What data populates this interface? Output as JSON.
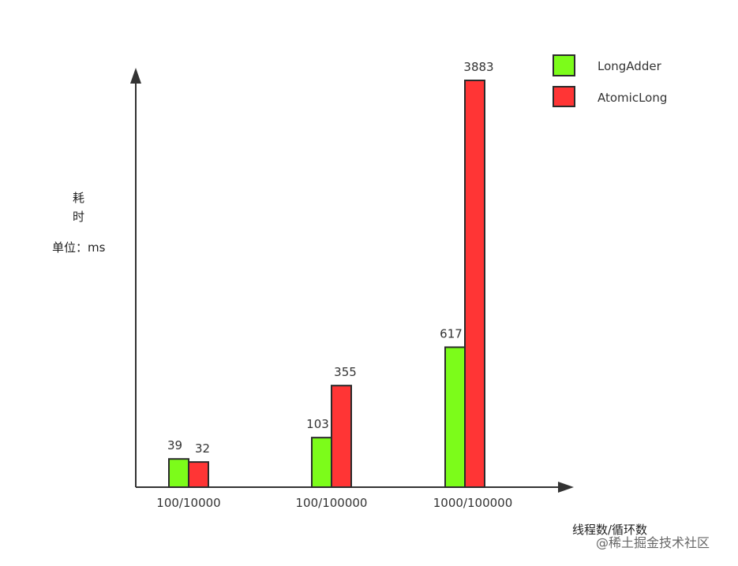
{
  "chart_data": {
    "type": "bar",
    "categories": [
      "100/10000",
      "100/100000",
      "1000/100000"
    ],
    "series": [
      {
        "name": "LongAdder",
        "values": [
          39,
          103,
          617
        ],
        "color": "#7cfc1a"
      },
      {
        "name": "AtomicLong",
        "values": [
          32,
          355,
          3883
        ],
        "color": "#ff3535"
      }
    ],
    "ylabel": "耗时",
    "yunit": "单位：ms",
    "xlabel": "线程数/循环数",
    "legend": "top-right",
    "grid": false
  },
  "watermark": "@稀土掘金技术社区"
}
